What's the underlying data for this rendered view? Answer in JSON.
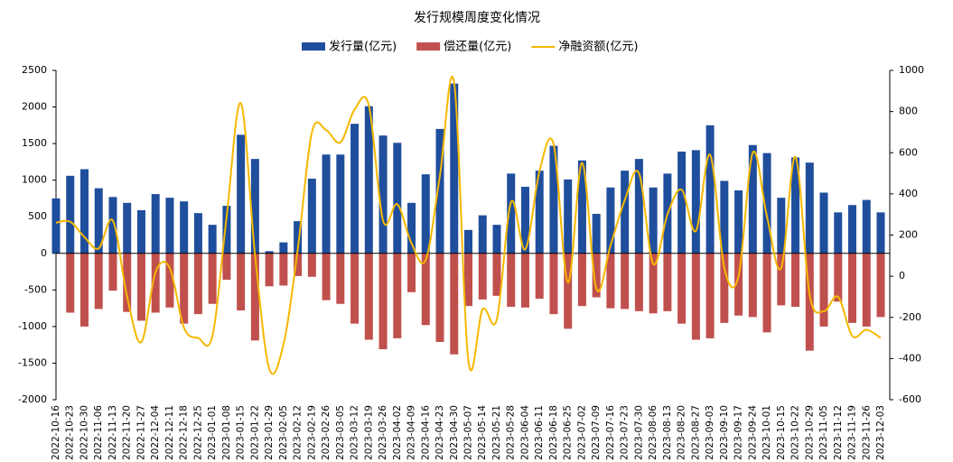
{
  "chart_data": {
    "type": "bar_line",
    "title": "发行规模周度变化情况",
    "categories": [
      "2022-10-16",
      "2022-10-23",
      "2022-10-30",
      "2022-11-06",
      "2022-11-13",
      "2022-11-20",
      "2022-11-27",
      "2022-12-04",
      "2022-12-11",
      "2022-12-18",
      "2022-12-25",
      "2023-01-01",
      "2023-01-08",
      "2023-01-15",
      "2023-01-22",
      "2023-01-29",
      "2023-02-05",
      "2023-02-12",
      "2023-02-19",
      "2023-02-26",
      "2023-03-05",
      "2023-03-12",
      "2023-03-19",
      "2023-03-26",
      "2023-04-02",
      "2023-04-09",
      "2023-04-16",
      "2023-04-23",
      "2023-04-30",
      "2023-05-07",
      "2023-05-14",
      "2023-05-21",
      "2023-05-28",
      "2023-06-04",
      "2023-06-11",
      "2023-06-18",
      "2023-06-25",
      "2023-07-02",
      "2023-07-09",
      "2023-07-16",
      "2023-07-23",
      "2023-07-30",
      "2023-08-06",
      "2023-08-13",
      "2023-08-20",
      "2023-08-27",
      "2023-09-03",
      "2023-09-10",
      "2023-09-17",
      "2023-09-24",
      "2023-10-01",
      "2023-10-15",
      "2023-10-22",
      "2023-10-29",
      "2023-11-05",
      "2023-11-12",
      "2023-11-19",
      "2023-11-26",
      "2023-12-03"
    ],
    "series": [
      {
        "name": "发行量(亿元)",
        "color": "#1f4e9c",
        "kind": "bar",
        "values": [
          750,
          1060,
          1150,
          890,
          770,
          690,
          590,
          810,
          760,
          710,
          550,
          390,
          650,
          1620,
          1290,
          30,
          150,
          440,
          1020,
          1350,
          1350,
          1770,
          2010,
          1610,
          1510,
          690,
          1080,
          1700,
          2320,
          320,
          520,
          390,
          1090,
          910,
          1130,
          1470,
          1010,
          1270,
          540,
          900,
          1130,
          1290,
          900,
          1090,
          1390,
          1410,
          1750,
          990,
          860,
          1480,
          1370,
          760,
          1310,
          1240,
          830,
          560,
          660,
          730,
          560
        ]
      },
      {
        "name": "偿还量(亿元)",
        "color": "#c0504d",
        "kind": "bar",
        "values": [
          0,
          -810,
          -1000,
          -760,
          -510,
          -800,
          -920,
          -810,
          -740,
          -960,
          -830,
          -690,
          -360,
          -780,
          -1190,
          -450,
          -440,
          -310,
          -320,
          -640,
          -690,
          -960,
          -1180,
          -1310,
          -1160,
          -530,
          -980,
          -1210,
          -1380,
          -720,
          -630,
          -580,
          -730,
          -740,
          -620,
          -830,
          -1030,
          -720,
          -600,
          -750,
          -760,
          -790,
          -820,
          -790,
          -960,
          -1180,
          -1160,
          -950,
          -850,
          -870,
          -1080,
          -710,
          -730,
          -1330,
          -1000,
          -660,
          -950,
          -1000,
          -870
        ]
      },
      {
        "name": "净融资额(亿元)",
        "color": "#f5b800",
        "kind": "line",
        "axis": "y2",
        "values": [
          260,
          265,
          190,
          135,
          270,
          -100,
          -320,
          20,
          40,
          -250,
          -300,
          -290,
          290,
          840,
          100,
          -450,
          -330,
          130,
          700,
          710,
          650,
          810,
          830,
          270,
          350,
          160,
          80,
          490,
          940,
          -410,
          -160,
          -210,
          360,
          130,
          510,
          640,
          -30,
          550,
          -60,
          150,
          370,
          500,
          60,
          300,
          420,
          220,
          590,
          40,
          0,
          600,
          290,
          40,
          580,
          -90,
          -170,
          -100,
          -290,
          -260,
          -300
        ]
      }
    ],
    "ylim": [
      -2000,
      2500
    ],
    "yticks": [
      -2000,
      -1500,
      -1000,
      -500,
      0,
      500,
      1000,
      1500,
      2000,
      2500
    ],
    "y2lim": [
      -600,
      1000
    ],
    "y2ticks": [
      -600,
      -400,
      -200,
      0,
      200,
      400,
      600,
      800,
      1000
    ]
  }
}
